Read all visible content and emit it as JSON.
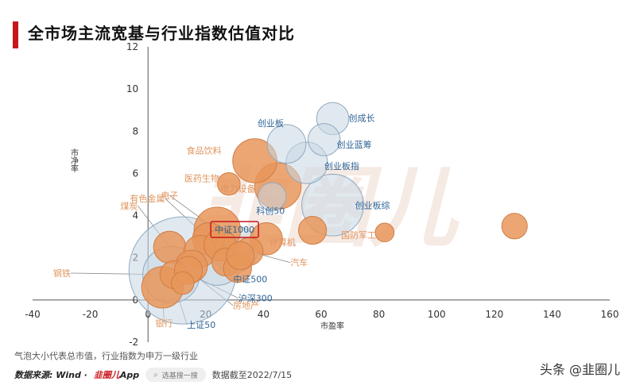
{
  "title": "全市场主流宽基与行业指数估值对比",
  "footnote": "气泡大小代表总市值，行业指数为申万一级行业",
  "footer": {
    "source": "数据来源: Wind ·",
    "app_prefix": "韭圈儿",
    "app_suffix": "App",
    "search_placeholder": "选基搜一搜",
    "date_text": "数据截至2022/7/15",
    "author": "头条 @韭圈儿"
  },
  "watermark": "韭圈儿",
  "colors": {
    "accent": "#c8161d",
    "industry": "#e8965a",
    "broad": "#c9d7e3",
    "label_orange": "#e0955f",
    "label_blue": "#2f6496"
  },
  "chart_data": {
    "type": "scatter",
    "title": "全市场主流宽基与行业指数估值对比",
    "xlabel": "市盈率",
    "ylabel": "市净率",
    "xlim": [
      -40,
      160
    ],
    "ylim": [
      -2,
      12
    ],
    "xticks": [
      -40,
      -20,
      0,
      20,
      40,
      60,
      80,
      100,
      120,
      140,
      160
    ],
    "yticks": [
      -2,
      0,
      2,
      4,
      6,
      8,
      10,
      12
    ],
    "grid": false,
    "series": [
      {
        "name": "",
        "group": "broad",
        "points": [
          {
            "label": "创成长",
            "x": 64,
            "y": 8.6,
            "size": 0.3
          },
          {
            "label": "创业板",
            "x": 48,
            "y": 7.4,
            "size": 0.5
          },
          {
            "label": "创业蓝筹",
            "x": 61,
            "y": 7.6,
            "size": 0.3
          },
          {
            "label": "创业板指",
            "x": 55,
            "y": 6.5,
            "size": 0.6
          },
          {
            "label": "创业板综",
            "x": 64,
            "y": 4.5,
            "size": 1.6
          },
          {
            "label": "科创50",
            "x": 43,
            "y": 4.9,
            "size": 0.2
          },
          {
            "label": "中证1000",
            "x": 30,
            "y": 2.4,
            "size": 0.8
          },
          {
            "label": "中证500",
            "x": 24,
            "y": 1.9,
            "size": 1.0
          },
          {
            "label": "沪深300",
            "x": 12,
            "y": 1.4,
            "size": 5.6
          },
          {
            "label": "上证50",
            "x": 8,
            "y": 1.2,
            "size": 1.3
          }
        ]
      },
      {
        "name": "",
        "group": "industry",
        "points": [
          {
            "label": "食品饮料",
            "x": 37,
            "y": 6.6,
            "size": 0.7
          },
          {
            "label": "医药生物",
            "x": 28,
            "y": 5.5,
            "size": 0.1
          },
          {
            "label": "电力设备",
            "x": 45,
            "y": 5.4,
            "size": 0.8
          },
          {
            "label": "电子",
            "x": 24,
            "y": 3.3,
            "size": 0.8
          },
          {
            "label": "有色金属",
            "x": 21,
            "y": 2.9,
            "size": 0.3
          },
          {
            "label": "煤炭",
            "x": 7.5,
            "y": 2.5,
            "size": 0.3
          },
          {
            "label": "钢铁",
            "x": 9,
            "y": 1.2,
            "size": 0.2
          },
          {
            "label": "计算机",
            "x": 41,
            "y": 2.9,
            "size": 0.3
          },
          {
            "label": "汽车",
            "x": 35,
            "y": 2.3,
            "size": 0.2
          },
          {
            "label": "国防军工",
            "x": 57,
            "y": 3.3,
            "size": 0.2
          },
          {
            "label": "",
            "x": 82,
            "y": 3.2,
            "size": 0.05
          },
          {
            "label": "",
            "x": 127,
            "y": 3.5,
            "size": 0.15
          },
          {
            "label": "房地产",
            "x": 14,
            "y": 1.4,
            "size": 0.2
          },
          {
            "label": "银行",
            "x": 5,
            "y": 0.6,
            "size": 0.6
          },
          {
            "label": "",
            "x": 12,
            "y": 0.8,
            "size": 0.1
          },
          {
            "label": "",
            "x": 27,
            "y": 1.8,
            "size": 0.2
          },
          {
            "label": "",
            "x": 18,
            "y": 2.3,
            "size": 0.3
          },
          {
            "label": "",
            "x": 31,
            "y": 1.5,
            "size": 0.2
          },
          {
            "label": "",
            "x": 15,
            "y": 1.6,
            "size": 0.3
          },
          {
            "label": "",
            "x": 32,
            "y": 2.1,
            "size": 0.2
          },
          {
            "label": "",
            "x": 25,
            "y": 2.6,
            "size": 0.3
          }
        ]
      }
    ],
    "highlight": "中证1000"
  }
}
